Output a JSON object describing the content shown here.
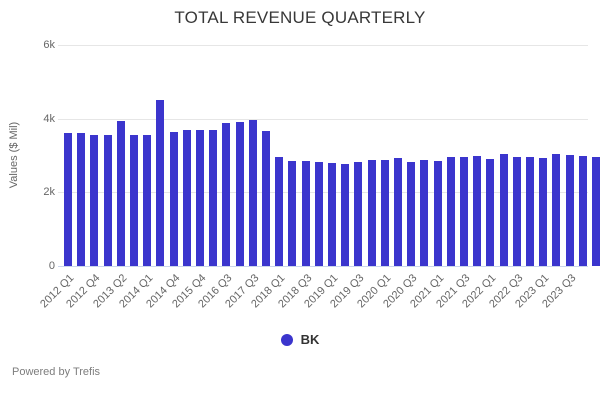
{
  "header": {
    "title": "TOTAL REVENUE QUARTERLY"
  },
  "legend": {
    "items": [
      {
        "label": "BK",
        "color": "#3b35cd"
      }
    ]
  },
  "footer": {
    "text": "Powered by Trefis"
  },
  "colors": {
    "bar": "#3b35cd",
    "gridline": "#e6e6e6",
    "axis_line": "#ccd6eb",
    "tick_text": "#666666",
    "title_text": "#383838",
    "legend_text": "#333333",
    "footer_text": "#7d7d7d"
  },
  "chart_data": {
    "type": "bar",
    "title": "TOTAL REVENUE QUARTERLY",
    "xlabel": "",
    "ylabel": "Values ($ Mil)",
    "ylim": [
      0,
      6000
    ],
    "grid": "horizontal",
    "legend_position": "bottom",
    "series": [
      {
        "name": "BK",
        "color": "#3b35cd",
        "values": [
          3620,
          3620,
          3560,
          3560,
          3930,
          3550,
          3560,
          4500,
          3630,
          3700,
          3680,
          3680,
          3880,
          3900,
          3970,
          3670,
          2950,
          2850,
          2860,
          2820,
          2800,
          2760,
          2820,
          2870,
          2870,
          2920,
          2830,
          2870,
          2860,
          2950,
          2960,
          3000,
          2900,
          3050,
          2960,
          2960,
          2930,
          3050,
          3020,
          3000,
          2970
        ]
      }
    ],
    "yticks": [
      {
        "label": "0",
        "value": 0
      },
      {
        "label": "2k",
        "value": 2000
      },
      {
        "label": "4k",
        "value": 4000
      },
      {
        "label": "6k",
        "value": 6000
      }
    ],
    "x_tick_labels": [
      "2012 Q1",
      "2012 Q4",
      "2013 Q2",
      "2014 Q1",
      "2014 Q4",
      "2015 Q4",
      "2016 Q3",
      "2017 Q3",
      "2018 Q1",
      "2018 Q3",
      "2019 Q1",
      "2019 Q3",
      "2020 Q1",
      "2020 Q3",
      "2021 Q1",
      "2021 Q3",
      "2022 Q1",
      "2022 Q3",
      "2023 Q1",
      "2023 Q3"
    ],
    "x_tick_step": 2
  }
}
